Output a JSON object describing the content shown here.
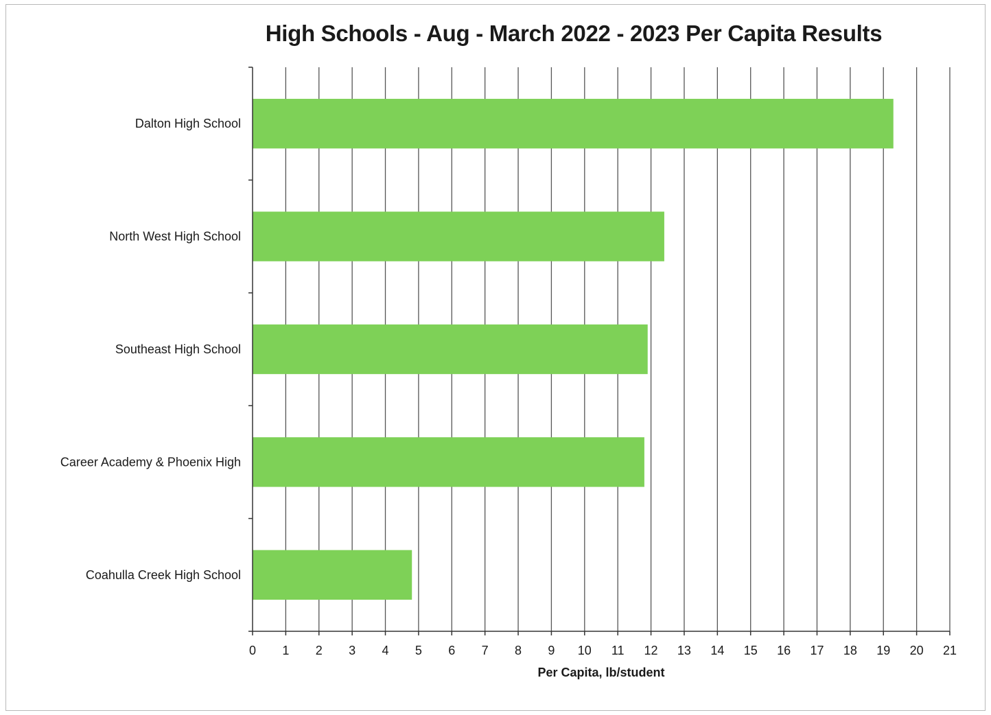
{
  "chart_data": {
    "type": "bar",
    "orientation": "horizontal",
    "title": "High Schools - Aug - March 2022 - 2023 Per Capita Results",
    "xlabel": "Per Capita, lb/student",
    "ylabel": "",
    "categories": [
      "Dalton High School",
      "North West High School",
      "Southeast High School",
      "Career Academy & Phoenix High",
      "Coahulla Creek High School"
    ],
    "values": [
      19.3,
      12.4,
      11.9,
      11.8,
      4.8
    ],
    "xlim": [
      0,
      21
    ],
    "xticks": [
      "0",
      "1",
      "2",
      "3",
      "4",
      "5",
      "6",
      "7",
      "8",
      "9",
      "10",
      "11",
      "12",
      "13",
      "14",
      "15",
      "16",
      "17",
      "18",
      "19",
      "20",
      "21"
    ],
    "grid": "vertical",
    "legend": "none",
    "colors": {
      "bar": "#7ed157",
      "grid": "#555555",
      "axis": "#333333"
    }
  }
}
